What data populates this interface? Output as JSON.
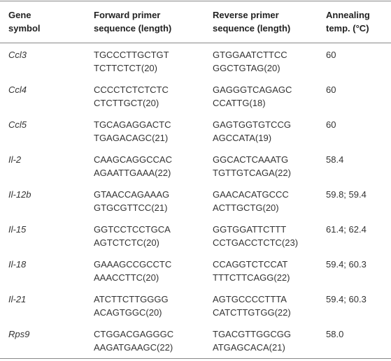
{
  "table": {
    "header": [
      [
        "Gene",
        "symbol"
      ],
      [
        "Forward primer",
        "sequence (length)"
      ],
      [
        "Reverse primer",
        "sequence (length)"
      ],
      [
        "Annealing",
        "temp. (°C)"
      ]
    ],
    "rows": [
      [
        [
          "Ccl3"
        ],
        [
          "TGCCCTTGCTGT",
          "TCTTCTCT(20)"
        ],
        [
          "GTGGAATCTTCC",
          "GGCTGTAG(20)"
        ],
        [
          "60"
        ]
      ],
      [
        [
          "Ccl4"
        ],
        [
          "CCCCTCTCTCTC",
          "CTCTTGCT(20)"
        ],
        [
          "GAGGGTCAGAGC",
          "CCATTG(18)"
        ],
        [
          "60"
        ]
      ],
      [
        [
          "Ccl5"
        ],
        [
          "TGCAGAGGACTC",
          "TGAGACAGC(21)"
        ],
        [
          "GAGTGGTGTCCG",
          "AGCCATA(19)"
        ],
        [
          "60"
        ]
      ],
      [
        [
          "Il-2"
        ],
        [
          "CAAGCAGGCCAC",
          "AGAATTGAAA(22)"
        ],
        [
          "GGCACTCAAATG",
          "TGTTGTCAGA(22)"
        ],
        [
          "58.4"
        ]
      ],
      [
        [
          "Il-12b"
        ],
        [
          "GTAACCAGAAAG",
          "GTGCGTTCC(21)"
        ],
        [
          "GAACACATGCCC",
          "ACTTGCTG(20)"
        ],
        [
          "59.8; 59.4"
        ]
      ],
      [
        [
          "Il-15"
        ],
        [
          "GGTCCTCCTGCA",
          "AGTCTCTC(20)"
        ],
        [
          "GGTGGATTCTTT",
          "CCTGACCTCTC(23)"
        ],
        [
          "61.4; 62.4"
        ]
      ],
      [
        [
          "Il-18"
        ],
        [
          "GAAAGCCGCCTC",
          "AAACCTTC(20)"
        ],
        [
          "CCAGGTCTCCAT",
          "TTTCTTCAGG(22)"
        ],
        [
          "59.4; 60.3"
        ]
      ],
      [
        [
          "Il-21"
        ],
        [
          "ATCTTCTTGGGG",
          "ACAGTGGC(20)"
        ],
        [
          "AGTGCCCCTTTA",
          "CATCTTGTGG(22)"
        ],
        [
          "59.4; 60.3"
        ]
      ],
      [
        [
          "Rps9"
        ],
        [
          "CTGGACGAGGGC",
          "AAGATGAAGC(22)"
        ],
        [
          "TGACGTTGGCGG",
          "ATGAGCACA(21)"
        ],
        [
          "58.0"
        ]
      ]
    ]
  }
}
